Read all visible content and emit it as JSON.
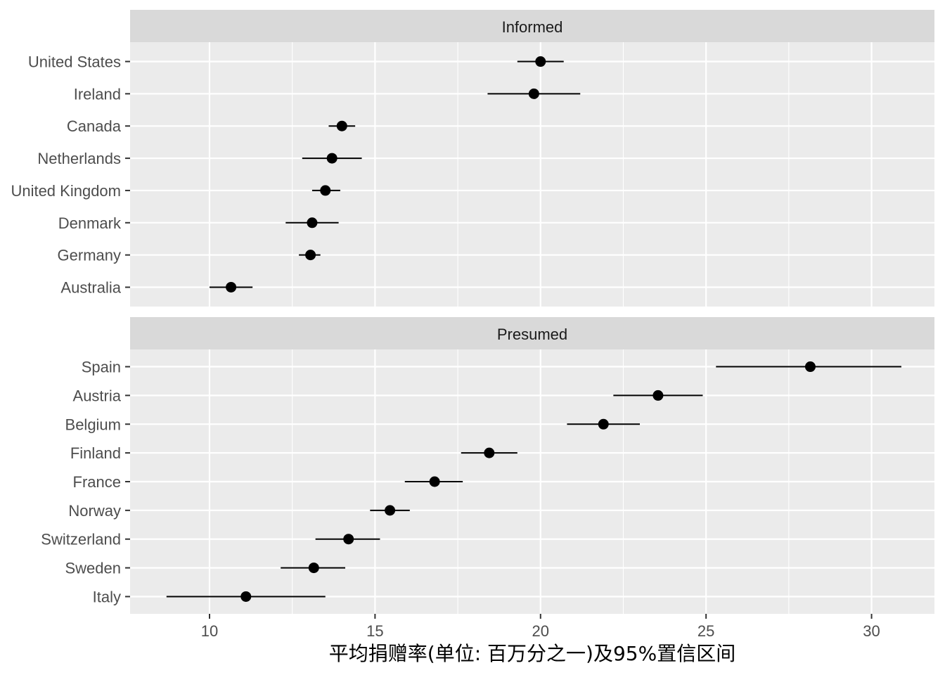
{
  "chart_data": {
    "type": "scatter",
    "xlabel": "平均捐赠率(单位: 百万分之一)及95%置信区间",
    "ylabel": "",
    "xlim": [
      7.6,
      31.9
    ],
    "xticks": [
      10,
      15,
      20,
      25,
      30
    ],
    "grid": true,
    "colors": {
      "panel_bg": "#ebebeb",
      "strip_bg": "#d9d9d9",
      "grid_major": "#ffffff",
      "point": "#000000"
    },
    "panels": [
      {
        "strip": "Informed",
        "points": [
          {
            "country": "United States",
            "mean": 20.0,
            "lo": 19.3,
            "hi": 20.7
          },
          {
            "country": "Ireland",
            "mean": 19.8,
            "lo": 18.4,
            "hi": 21.2
          },
          {
            "country": "Canada",
            "mean": 14.0,
            "lo": 13.6,
            "hi": 14.4
          },
          {
            "country": "Netherlands",
            "mean": 13.7,
            "lo": 12.8,
            "hi": 14.6
          },
          {
            "country": "United Kingdom",
            "mean": 13.5,
            "lo": 13.1,
            "hi": 13.95
          },
          {
            "country": "Denmark",
            "mean": 13.1,
            "lo": 12.3,
            "hi": 13.9
          },
          {
            "country": "Germany",
            "mean": 13.05,
            "lo": 12.7,
            "hi": 13.35
          },
          {
            "country": "Australia",
            "mean": 10.65,
            "lo": 10.0,
            "hi": 11.3
          }
        ]
      },
      {
        "strip": "Presumed",
        "points": [
          {
            "country": "Spain",
            "mean": 28.15,
            "lo": 25.3,
            "hi": 30.9
          },
          {
            "country": "Austria",
            "mean": 23.55,
            "lo": 22.2,
            "hi": 24.9
          },
          {
            "country": "Belgium",
            "mean": 21.9,
            "lo": 20.8,
            "hi": 23.0
          },
          {
            "country": "Finland",
            "mean": 18.45,
            "lo": 17.6,
            "hi": 19.3
          },
          {
            "country": "France",
            "mean": 16.8,
            "lo": 15.9,
            "hi": 17.65
          },
          {
            "country": "Norway",
            "mean": 15.45,
            "lo": 14.85,
            "hi": 16.05
          },
          {
            "country": "Switzerland",
            "mean": 14.2,
            "lo": 13.2,
            "hi": 15.15
          },
          {
            "country": "Sweden",
            "mean": 13.15,
            "lo": 12.15,
            "hi": 14.1
          },
          {
            "country": "Italy",
            "mean": 11.1,
            "lo": 8.7,
            "hi": 13.5
          }
        ]
      }
    ]
  }
}
